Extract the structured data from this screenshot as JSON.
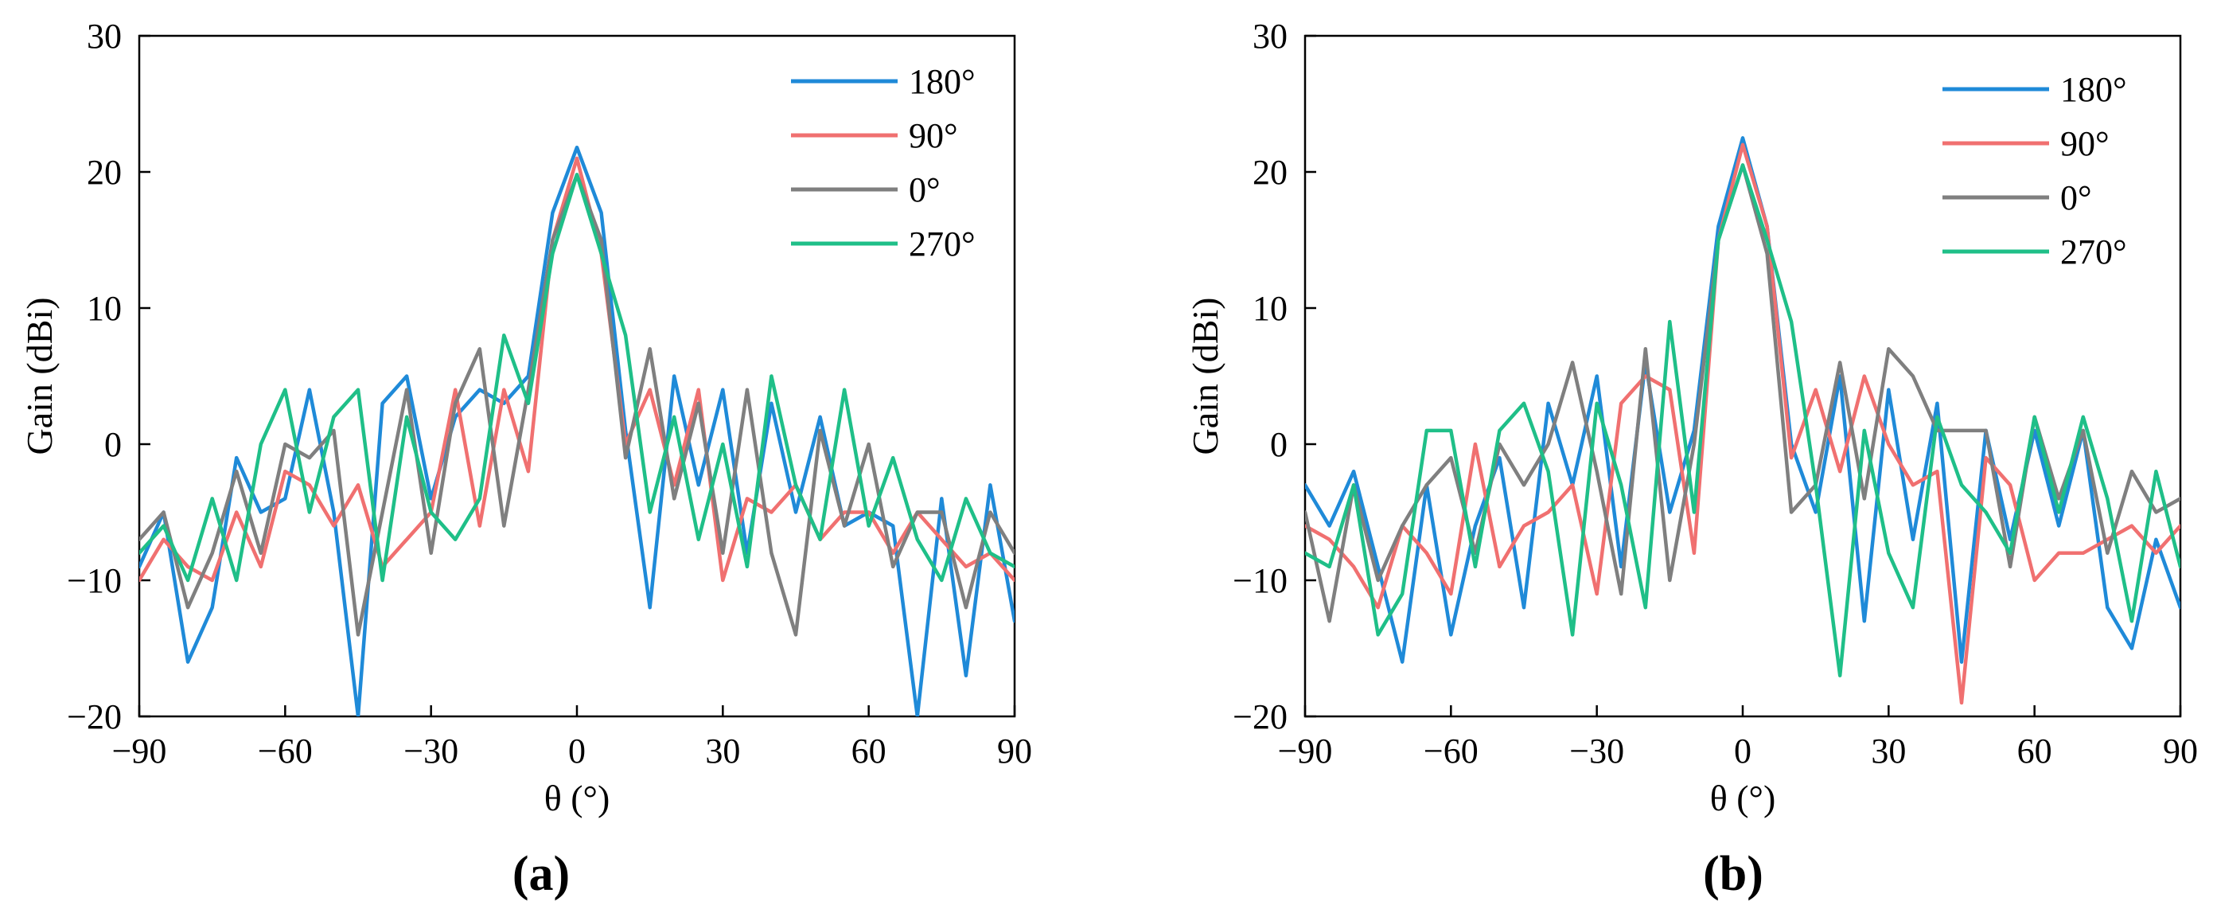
{
  "figure": {
    "panels": [
      "(a)",
      "(b)"
    ]
  },
  "chart_data": [
    {
      "type": "line",
      "panel_label": "(a)",
      "title": "",
      "xlabel": "θ (°)",
      "ylabel": "Gain (dBi)",
      "xlim": [
        -90,
        90
      ],
      "ylim": [
        -20,
        30
      ],
      "xticks": [
        -90,
        -60,
        -30,
        0,
        30,
        60,
        90
      ],
      "yticks": [
        -20,
        -10,
        0,
        10,
        20,
        30
      ],
      "xtick_labels": [
        "−90",
        "−60",
        "−30",
        "0",
        "30",
        "60",
        "90"
      ],
      "ytick_labels": [
        "−20",
        "−10",
        "0",
        "10",
        "20",
        "30"
      ],
      "grid": false,
      "legend_position": "top-right",
      "x": [
        -90,
        -85,
        -80,
        -75,
        -70,
        -65,
        -60,
        -55,
        -50,
        -45,
        -40,
        -35,
        -30,
        -25,
        -20,
        -15,
        -10,
        -5,
        0,
        5,
        10,
        15,
        20,
        25,
        30,
        35,
        40,
        45,
        50,
        55,
        60,
        65,
        70,
        75,
        80,
        85,
        90
      ],
      "series": [
        {
          "name": "180°",
          "color": "#1f8ad8",
          "values": [
            -9,
            -5,
            -16,
            -12,
            -1,
            -5,
            -4,
            4,
            -5,
            -20,
            3,
            5,
            -4,
            2,
            4,
            3,
            5,
            17,
            21.8,
            17,
            1,
            -12,
            5,
            -3,
            4,
            -8,
            3,
            -5,
            2,
            -6,
            -5,
            -6,
            -20,
            -4,
            -17,
            -3,
            -13
          ]
        },
        {
          "name": "90°",
          "color": "#f07070",
          "values": [
            -10,
            -7,
            -9,
            -10,
            -5,
            -9,
            -2,
            -3,
            -6,
            -3,
            -9,
            -7,
            -5,
            4,
            -6,
            4,
            -2,
            15,
            21,
            14,
            0,
            4,
            -3,
            4,
            -10,
            -4,
            -5,
            -3,
            -7,
            -5,
            -5,
            -8,
            -5,
            -7,
            -9,
            -8,
            -10
          ]
        },
        {
          "name": "0°",
          "color": "#7f7f7f",
          "values": [
            -7,
            -5,
            -12,
            -8,
            -2,
            -8,
            0,
            -1,
            1,
            -14,
            -5,
            4,
            -8,
            3,
            7,
            -6,
            4,
            15,
            19.8,
            15,
            -1,
            7,
            -4,
            3,
            -8,
            4,
            -8,
            -14,
            1,
            -6,
            0,
            -9,
            -5,
            -5,
            -12,
            -5,
            -8
          ]
        },
        {
          "name": "270°",
          "color": "#1fbf88",
          "values": [
            -8,
            -6,
            -10,
            -4,
            -10,
            0,
            4,
            -5,
            2,
            4,
            -10,
            2,
            -5,
            -7,
            -4,
            8,
            3,
            14,
            19.8,
            14,
            8,
            -5,
            2,
            -7,
            0,
            -9,
            5,
            -3,
            -7,
            4,
            -6,
            -1,
            -7,
            -10,
            -4,
            -8,
            -9
          ]
        }
      ]
    },
    {
      "type": "line",
      "panel_label": "(b)",
      "title": "",
      "xlabel": "θ (°)",
      "ylabel": "Gain (dBi)",
      "xlim": [
        -90,
        90
      ],
      "ylim": [
        -20,
        30
      ],
      "xticks": [
        -90,
        -60,
        -30,
        0,
        30,
        60,
        90
      ],
      "yticks": [
        -20,
        -10,
        0,
        10,
        20,
        30
      ],
      "xtick_labels": [
        "−90",
        "−60",
        "−30",
        "0",
        "30",
        "60",
        "90"
      ],
      "ytick_labels": [
        "−20",
        "−10",
        "0",
        "10",
        "20",
        "30"
      ],
      "grid": false,
      "legend_position": "top-right",
      "x": [
        -90,
        -85,
        -80,
        -75,
        -70,
        -65,
        -60,
        -55,
        -50,
        -45,
        -40,
        -35,
        -30,
        -25,
        -20,
        -15,
        -10,
        -5,
        0,
        5,
        10,
        15,
        20,
        25,
        30,
        35,
        40,
        45,
        50,
        55,
        60,
        65,
        70,
        75,
        80,
        85,
        90
      ],
      "series": [
        {
          "name": "180°",
          "color": "#1f8ad8",
          "values": [
            -3,
            -6,
            -2,
            -9,
            -16,
            -3,
            -14,
            -6,
            -1,
            -12,
            3,
            -3,
            5,
            -9,
            6,
            -5,
            1,
            16,
            22.5,
            16,
            0,
            -5,
            5,
            -13,
            4,
            -7,
            3,
            -16,
            1,
            -7,
            1,
            -6,
            1,
            -12,
            -15,
            -7,
            -12
          ]
        },
        {
          "name": "90°",
          "color": "#f07070",
          "values": [
            -6,
            -7,
            -9,
            -12,
            -6,
            -8,
            -11,
            0,
            -9,
            -6,
            -5,
            -3,
            -11,
            3,
            5,
            4,
            -8,
            15,
            22,
            16,
            -1,
            4,
            -2,
            5,
            0,
            -3,
            -2,
            -19,
            -1,
            -3,
            -10,
            -8,
            -8,
            -7,
            -6,
            -8,
            -6
          ]
        },
        {
          "name": "0°",
          "color": "#7f7f7f",
          "values": [
            -5,
            -13,
            -3,
            -10,
            -6,
            -3,
            -1,
            -8,
            0,
            -3,
            0,
            6,
            -2,
            -11,
            7,
            -10,
            0,
            15,
            20.5,
            14,
            -5,
            -3,
            6,
            -4,
            7,
            5,
            1,
            1,
            1,
            -9,
            2,
            -4,
            1,
            -8,
            -2,
            -5,
            -4
          ]
        },
        {
          "name": "270°",
          "color": "#1fbf88",
          "values": [
            -8,
            -9,
            -3,
            -14,
            -11,
            1,
            1,
            -9,
            1,
            3,
            -2,
            -14,
            3,
            -3,
            -12,
            9,
            -5,
            15,
            20.5,
            15,
            9,
            -3,
            -17,
            1,
            -8,
            -12,
            2,
            -3,
            -5,
            -8,
            2,
            -5,
            2,
            -4,
            -13,
            -2,
            -9
          ]
        }
      ]
    }
  ]
}
